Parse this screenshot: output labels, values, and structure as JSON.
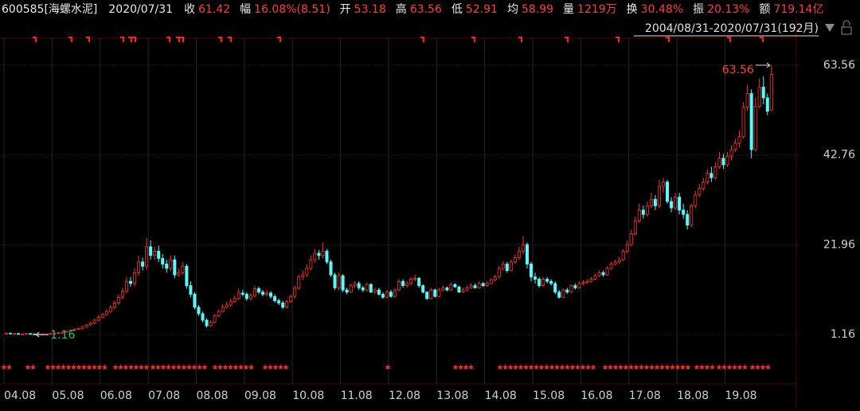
{
  "header": {
    "code": "600585[海螺水泥]",
    "date": "2020/07/31",
    "items": [
      {
        "label": "收",
        "value": "61.42"
      },
      {
        "label": "幅",
        "value": "16.08%(8.51)"
      },
      {
        "label": "开",
        "value": "53.18"
      },
      {
        "label": "高",
        "value": "63.56"
      },
      {
        "label": "低",
        "value": "52.91"
      },
      {
        "label": "均",
        "value": "58.99"
      },
      {
        "label": "量",
        "value": "1219万"
      },
      {
        "label": "换",
        "value": "30.48%"
      },
      {
        "label": "振",
        "value": "20.13%"
      },
      {
        "label": "额",
        "value": "719.14亿"
      }
    ],
    "range": "2004/08/31-2020/07/31(192月)"
  },
  "chart_data": {
    "type": "candlestick",
    "up_color": "#ff3232",
    "down_color": "#54fcfc",
    "grid": true,
    "xlim": [
      -1.6,
      197.2
    ],
    "ylim": [
      -3.44,
      70.37
    ],
    "yticks": [
      1.16,
      21.96,
      42.76,
      63.56
    ],
    "xticks": [
      {
        "value": 0,
        "label": "04.08"
      },
      {
        "value": 12,
        "label": "05.08"
      },
      {
        "value": 24,
        "label": "06.08"
      },
      {
        "value": 36,
        "label": "07.08"
      },
      {
        "value": 48,
        "label": "08.08"
      },
      {
        "value": 60,
        "label": "09.08"
      },
      {
        "value": 72,
        "label": "10.08"
      },
      {
        "value": 84,
        "label": "11.08"
      },
      {
        "value": 96,
        "label": "12.08"
      },
      {
        "value": 108,
        "label": "13.08"
      },
      {
        "value": 120,
        "label": "14.08"
      },
      {
        "value": 132,
        "label": "15.08"
      },
      {
        "value": 144,
        "label": "16.08"
      },
      {
        "value": 156,
        "label": "17.08"
      },
      {
        "value": 168,
        "label": "18.08"
      },
      {
        "value": 180,
        "label": "19.08"
      }
    ],
    "max_mark": 63.56,
    "min_mark": 1.16,
    "open": [
      1.4,
      1.5,
      1.4,
      1.4,
      1.3,
      1.3,
      1.4,
      1.3,
      1.2,
      1.3,
      1.3,
      1.3,
      1.4,
      1.5,
      1.6,
      1.7,
      1.9,
      2.2,
      2.4,
      2.6,
      3.0,
      3.4,
      3.8,
      4.5,
      5.2,
      5.8,
      6.5,
      7.5,
      8.5,
      9.8,
      11.2,
      13.5,
      13.0,
      15.5,
      18.0,
      17.0,
      21.5,
      19.5,
      20.5,
      18.8,
      17.5,
      16.5,
      18.5,
      15.0,
      15.5,
      17.0,
      12.5,
      10.5,
      7.5,
      6.0,
      4.5,
      3.2,
      4.0,
      5.5,
      6.5,
      7.5,
      8.0,
      8.8,
      9.5,
      10.8,
      10.5,
      9.5,
      10.2,
      11.8,
      11.0,
      10.5,
      10.8,
      10.0,
      9.0,
      8.5,
      7.5,
      8.8,
      10.0,
      12.0,
      14.5,
      15.0,
      16.5,
      18.5,
      20.0,
      19.5,
      20.5,
      18.0,
      15.0,
      12.0,
      14.8,
      11.5,
      11.0,
      12.5,
      13.0,
      12.0,
      11.5,
      12.8,
      11.0,
      11.5,
      10.5,
      9.8,
      11.0,
      10.0,
      11.5,
      13.5,
      12.5,
      13.0,
      14.0,
      14.2,
      12.5,
      11.0,
      9.5,
      11.5,
      10.0,
      11.5,
      12.0,
      11.5,
      12.8,
      12.2,
      11.0,
      11.5,
      12.0,
      12.5,
      12.0,
      13.0,
      12.5,
      13.0,
      13.8,
      14.5,
      16.5,
      17.5,
      16.0,
      18.0,
      19.0,
      20.5,
      22.0,
      17.5,
      14.5,
      14.0,
      12.5,
      14.0,
      13.5,
      13.0,
      11.0,
      9.8,
      11.5,
      11.0,
      12.5,
      12.0,
      13.0,
      13.2,
      13.5,
      14.0,
      14.8,
      15.5,
      15.0,
      16.5,
      17.5,
      18.0,
      18.5,
      20.5,
      22.0,
      24.5,
      27.5,
      30.0,
      29.0,
      31.0,
      32.5,
      31.0,
      35.5,
      36.5,
      32.0,
      30.5,
      33.0,
      30.0,
      29.0,
      26.5,
      31.0,
      33.5,
      35.0,
      36.5,
      38.5,
      37.5,
      40.0,
      42.0,
      40.5,
      42.5,
      44.0,
      45.5,
      47.0,
      53.8,
      57.0,
      44.0,
      54.0,
      58.5,
      56.0,
      53.18
    ],
    "high": [
      1.6,
      1.6,
      1.5,
      1.5,
      1.4,
      1.5,
      1.5,
      1.4,
      1.4,
      1.4,
      1.4,
      1.5,
      1.6,
      1.7,
      1.8,
      2.0,
      2.3,
      2.6,
      2.8,
      3.2,
      3.6,
      4.1,
      4.8,
      5.6,
      6.2,
      7.0,
      8.0,
      9.0,
      10.5,
      12.0,
      14.5,
      14.5,
      16.5,
      19.5,
      19.0,
      23.5,
      23.0,
      21.5,
      21.8,
      19.8,
      18.5,
      19.5,
      19.5,
      16.5,
      18.0,
      17.5,
      13.5,
      11.0,
      8.0,
      6.5,
      5.0,
      4.5,
      6.0,
      7.0,
      8.2,
      8.8,
      9.5,
      10.2,
      11.8,
      11.5,
      11.0,
      10.8,
      12.5,
      12.3,
      11.5,
      11.5,
      11.2,
      10.5,
      9.5,
      9.0,
      9.2,
      10.5,
      12.5,
      15.0,
      16.0,
      17.5,
      19.5,
      21.0,
      20.8,
      22.5,
      21.0,
      18.5,
      15.5,
      15.5,
      15.2,
      12.0,
      13.0,
      13.5,
      13.5,
      12.5,
      13.2,
      13.0,
      12.0,
      12.0,
      11.0,
      11.5,
      11.5,
      11.8,
      14.0,
      14.0,
      13.5,
      14.5,
      15.0,
      14.5,
      12.8,
      11.2,
      12.0,
      11.8,
      12.0,
      12.5,
      12.3,
      13.2,
      13.0,
      12.5,
      12.0,
      12.5,
      13.0,
      13.0,
      13.5,
      13.3,
      13.5,
      14.2,
      15.0,
      17.0,
      18.2,
      18.0,
      18.5,
      19.8,
      21.5,
      24.0,
      22.5,
      18.0,
      15.5,
      14.5,
      14.5,
      14.5,
      14.0,
      13.5,
      11.5,
      11.8,
      12.0,
      12.8,
      13.0,
      13.5,
      13.8,
      14.0,
      14.5,
      15.2,
      16.0,
      16.0,
      17.0,
      18.0,
      18.5,
      19.2,
      21.0,
      23.0,
      25.5,
      28.5,
      31.5,
      31.0,
      32.0,
      34.0,
      33.5,
      37.0,
      37.5,
      37.0,
      33.0,
      34.0,
      34.0,
      31.5,
      30.0,
      31.5,
      34.5,
      36.0,
      37.5,
      39.5,
      40.0,
      41.0,
      43.5,
      43.0,
      43.5,
      45.0,
      46.5,
      48.5,
      55.0,
      59.0,
      58.0,
      56.0,
      60.5,
      61.0,
      57.0,
      63.56
    ],
    "low": [
      1.3,
      1.3,
      1.3,
      1.2,
      1.2,
      1.2,
      1.2,
      1.16,
      1.17,
      1.2,
      1.2,
      1.2,
      1.3,
      1.4,
      1.5,
      1.6,
      1.8,
      2.1,
      2.3,
      2.5,
      2.9,
      3.2,
      3.6,
      4.3,
      4.9,
      5.5,
      6.2,
      7.1,
      8.1,
      9.3,
      10.6,
      12.2,
      12.3,
      14.7,
      16.0,
      16.2,
      18.5,
      18.5,
      18.0,
      16.5,
      15.5,
      15.8,
      14.2,
      14.5,
      15.0,
      11.8,
      9.8,
      7.0,
      5.5,
      4.0,
      2.8,
      3.0,
      3.8,
      5.2,
      6.2,
      7.2,
      7.6,
      8.5,
      9.2,
      10.0,
      9.0,
      9.0,
      9.8,
      10.5,
      10.0,
      10.0,
      9.5,
      8.6,
      8.0,
      7.1,
      7.2,
      8.5,
      9.6,
      11.5,
      13.8,
      14.5,
      16.0,
      17.8,
      18.5,
      18.8,
      17.5,
      14.5,
      11.5,
      11.5,
      11.0,
      10.5,
      10.8,
      12.0,
      11.5,
      11.0,
      11.2,
      10.8,
      10.6,
      10.2,
      9.5,
      9.6,
      9.7,
      9.8,
      11.2,
      12.0,
      12.0,
      12.6,
      13.5,
      12.0,
      10.7,
      9.2,
      9.3,
      9.7,
      9.8,
      11.2,
      11.2,
      11.3,
      12.0,
      10.8,
      10.8,
      11.2,
      11.8,
      11.8,
      11.8,
      12.2,
      12.2,
      12.8,
      13.5,
      14.2,
      16.0,
      15.5,
      15.8,
      17.5,
      18.5,
      19.8,
      16.5,
      13.5,
      13.0,
      12.0,
      12.2,
      13.0,
      12.5,
      10.5,
      9.5,
      9.6,
      10.6,
      10.8,
      11.6,
      11.8,
      12.6,
      12.9,
      13.2,
      13.8,
      14.5,
      14.6,
      14.8,
      16.2,
      17.2,
      17.6,
      18.2,
      20.0,
      21.5,
      24.0,
      27.0,
      28.0,
      28.5,
      30.5,
      30.0,
      30.5,
      34.0,
      31.5,
      29.5,
      30.0,
      29.0,
      28.0,
      25.5,
      26.0,
      30.5,
      33.0,
      34.5,
      36.0,
      36.5,
      37.0,
      39.5,
      39.5,
      40.0,
      41.5,
      43.5,
      44.5,
      46.5,
      53.0,
      42.0,
      43.5,
      53.5,
      54.5,
      52.0,
      52.91
    ],
    "close": [
      1.5,
      1.4,
      1.4,
      1.3,
      1.3,
      1.4,
      1.3,
      1.2,
      1.3,
      1.3,
      1.3,
      1.4,
      1.5,
      1.6,
      1.7,
      1.9,
      2.2,
      2.4,
      2.6,
      3.0,
      3.4,
      3.8,
      4.5,
      5.2,
      5.8,
      6.5,
      7.5,
      8.5,
      9.8,
      11.2,
      13.5,
      13.0,
      15.5,
      18.0,
      17.0,
      21.5,
      19.5,
      20.5,
      18.8,
      17.5,
      16.5,
      18.5,
      15.0,
      15.5,
      17.0,
      12.5,
      10.5,
      7.5,
      6.0,
      4.5,
      3.2,
      4.0,
      5.5,
      6.5,
      7.5,
      8.0,
      8.8,
      9.5,
      10.8,
      10.5,
      9.5,
      10.2,
      11.8,
      11.0,
      10.5,
      10.8,
      10.0,
      9.0,
      8.5,
      7.5,
      8.8,
      10.0,
      12.0,
      14.5,
      15.0,
      16.5,
      18.5,
      20.0,
      19.5,
      20.5,
      18.0,
      15.0,
      12.0,
      14.8,
      11.5,
      11.0,
      12.5,
      13.0,
      12.0,
      11.5,
      12.8,
      11.0,
      11.5,
      10.5,
      9.8,
      11.0,
      10.0,
      11.5,
      13.5,
      12.5,
      13.0,
      14.0,
      14.2,
      12.5,
      11.0,
      9.5,
      11.5,
      10.0,
      11.5,
      12.0,
      11.5,
      12.8,
      12.2,
      11.0,
      11.5,
      12.0,
      12.5,
      12.0,
      13.0,
      12.5,
      13.0,
      13.8,
      14.5,
      16.5,
      17.5,
      16.0,
      18.0,
      19.0,
      20.5,
      22.0,
      17.5,
      14.5,
      14.0,
      12.5,
      14.0,
      13.5,
      13.0,
      11.0,
      9.8,
      11.5,
      11.0,
      12.5,
      12.0,
      13.0,
      13.2,
      13.5,
      14.0,
      14.8,
      15.5,
      15.0,
      16.5,
      17.5,
      18.0,
      18.5,
      20.5,
      22.0,
      24.5,
      27.5,
      30.0,
      29.0,
      31.0,
      32.5,
      31.0,
      35.5,
      36.5,
      32.0,
      30.5,
      33.0,
      30.0,
      29.0,
      26.5,
      31.0,
      33.5,
      35.0,
      36.5,
      38.5,
      37.5,
      40.0,
      42.0,
      40.5,
      42.5,
      44.0,
      45.5,
      47.0,
      53.8,
      57.0,
      44.0,
      54.0,
      58.5,
      56.0,
      52.91,
      61.42
    ]
  }
}
